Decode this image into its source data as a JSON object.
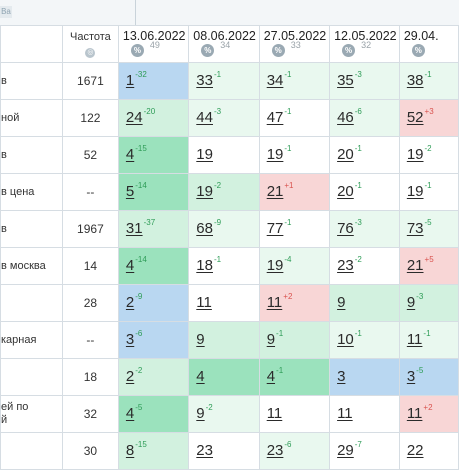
{
  "toolbar": {
    "badge": "Ba"
  },
  "table": {
    "frequency_header": "Частота",
    "globe_icon": "globe-icon",
    "pct_icon_label": "%",
    "dates": [
      {
        "date": "13.06.2022",
        "pct": "49"
      },
      {
        "date": "08.06.2022",
        "pct": "34"
      },
      {
        "date": "27.05.2022",
        "pct": "33"
      },
      {
        "date": "12.05.2022",
        "pct": "32"
      },
      {
        "date": "29.04.",
        "pct": ""
      }
    ],
    "rows": [
      {
        "keyword": "в",
        "freq": "1671",
        "cells": [
          {
            "v": "1",
            "d": "-32",
            "c": "blue"
          },
          {
            "v": "33",
            "d": "-1",
            "c": "vlgreen"
          },
          {
            "v": "34",
            "d": "-1",
            "c": "vlgreen"
          },
          {
            "v": "35",
            "d": "-3",
            "c": "vlgreen"
          },
          {
            "v": "38",
            "d": "-1",
            "c": "vlgreen"
          }
        ]
      },
      {
        "keyword": "ной",
        "freq": "122",
        "cells": [
          {
            "v": "24",
            "d": "-20",
            "c": "lgreen"
          },
          {
            "v": "44",
            "d": "-3",
            "c": "vlgreen"
          },
          {
            "v": "47",
            "d": "-1",
            "c": "white"
          },
          {
            "v": "46",
            "d": "-6",
            "c": "vlgreen"
          },
          {
            "v": "52",
            "d": "+3",
            "c": "pink"
          }
        ]
      },
      {
        "keyword": "в",
        "freq": "52",
        "cells": [
          {
            "v": "4",
            "d": "-15",
            "c": "green"
          },
          {
            "v": "19",
            "d": "",
            "c": "white"
          },
          {
            "v": "19",
            "d": "-1",
            "c": "white"
          },
          {
            "v": "20",
            "d": "-1",
            "c": "white"
          },
          {
            "v": "19",
            "d": "-2",
            "c": "white"
          }
        ]
      },
      {
        "keyword": "в цена",
        "freq": "--",
        "cells": [
          {
            "v": "5",
            "d": "-14",
            "c": "green"
          },
          {
            "v": "19",
            "d": "-2",
            "c": "lgreen"
          },
          {
            "v": "21",
            "d": "+1",
            "c": "pink"
          },
          {
            "v": "20",
            "d": "-1",
            "c": "white"
          },
          {
            "v": "19",
            "d": "-1",
            "c": "white"
          }
        ]
      },
      {
        "keyword": "в",
        "freq": "1967",
        "cells": [
          {
            "v": "31",
            "d": "-37",
            "c": "lgreen"
          },
          {
            "v": "68",
            "d": "-9",
            "c": "vlgreen"
          },
          {
            "v": "77",
            "d": "-1",
            "c": "white"
          },
          {
            "v": "76",
            "d": "-3",
            "c": "vlgreen"
          },
          {
            "v": "73",
            "d": "-5",
            "c": "vlgreen"
          }
        ]
      },
      {
        "keyword": "в москва",
        "freq": "14",
        "cells": [
          {
            "v": "4",
            "d": "-14",
            "c": "green"
          },
          {
            "v": "18",
            "d": "-1",
            "c": "white"
          },
          {
            "v": "19",
            "d": "-4",
            "c": "vlgreen"
          },
          {
            "v": "23",
            "d": "-2",
            "c": "white"
          },
          {
            "v": "21",
            "d": "+5",
            "c": "pink"
          }
        ]
      },
      {
        "keyword": "",
        "freq": "28",
        "cells": [
          {
            "v": "2",
            "d": "-9",
            "c": "blue"
          },
          {
            "v": "11",
            "d": "",
            "c": "white"
          },
          {
            "v": "11",
            "d": "+2",
            "c": "pink"
          },
          {
            "v": "9",
            "d": "",
            "c": "lgreen"
          },
          {
            "v": "9",
            "d": "-3",
            "c": "lgreen"
          }
        ]
      },
      {
        "keyword": "карная",
        "freq": "--",
        "cells": [
          {
            "v": "3",
            "d": "-6",
            "c": "blue"
          },
          {
            "v": "9",
            "d": "",
            "c": "lgreen"
          },
          {
            "v": "9",
            "d": "-1",
            "c": "lgreen"
          },
          {
            "v": "10",
            "d": "-1",
            "c": "vlgreen"
          },
          {
            "v": "11",
            "d": "-1",
            "c": "vlgreen"
          }
        ]
      },
      {
        "keyword": "",
        "freq": "18",
        "cells": [
          {
            "v": "2",
            "d": "-2",
            "c": "lgreen"
          },
          {
            "v": "4",
            "d": "",
            "c": "green"
          },
          {
            "v": "4",
            "d": "-1",
            "c": "green"
          },
          {
            "v": "3",
            "d": "",
            "c": "blue"
          },
          {
            "v": "3",
            "d": "-5",
            "c": "blue"
          }
        ]
      },
      {
        "keyword": "ей по\nй",
        "freq": "32",
        "cells": [
          {
            "v": "4",
            "d": "-5",
            "c": "green"
          },
          {
            "v": "9",
            "d": "-2",
            "c": "vlgreen"
          },
          {
            "v": "11",
            "d": "",
            "c": "white"
          },
          {
            "v": "11",
            "d": "",
            "c": "white"
          },
          {
            "v": "11",
            "d": "+2",
            "c": "pink"
          }
        ]
      },
      {
        "keyword": "",
        "freq": "30",
        "cells": [
          {
            "v": "8",
            "d": "-15",
            "c": "lgreen"
          },
          {
            "v": "23",
            "d": "",
            "c": "white"
          },
          {
            "v": "23",
            "d": "-6",
            "c": "vlgreen"
          },
          {
            "v": "29",
            "d": "-7",
            "c": "white"
          },
          {
            "v": "22",
            "d": "",
            "c": "white"
          }
        ]
      }
    ]
  }
}
